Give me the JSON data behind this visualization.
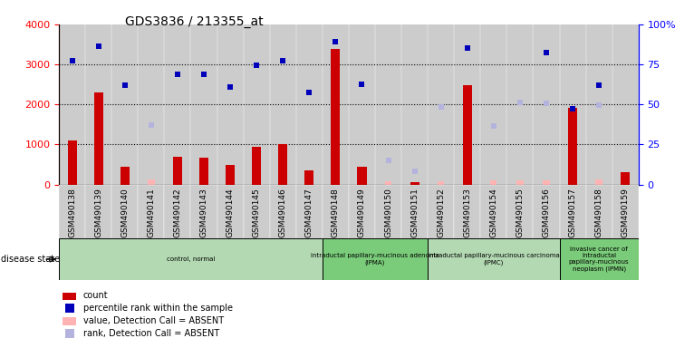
{
  "title": "GDS3836 / 213355_at",
  "samples": [
    "GSM490138",
    "GSM490139",
    "GSM490140",
    "GSM490141",
    "GSM490142",
    "GSM490143",
    "GSM490144",
    "GSM490145",
    "GSM490146",
    "GSM490147",
    "GSM490148",
    "GSM490149",
    "GSM490150",
    "GSM490151",
    "GSM490152",
    "GSM490153",
    "GSM490154",
    "GSM490155",
    "GSM490156",
    "GSM490157",
    "GSM490158",
    "GSM490159"
  ],
  "counts": [
    1100,
    2300,
    450,
    0,
    680,
    660,
    480,
    940,
    1000,
    350,
    3380,
    450,
    0,
    60,
    0,
    2480,
    0,
    0,
    0,
    1920,
    0,
    310
  ],
  "absent_value": [
    0,
    0,
    0,
    120,
    0,
    0,
    0,
    0,
    0,
    0,
    0,
    0,
    80,
    0,
    90,
    0,
    100,
    110,
    100,
    0,
    120,
    0
  ],
  "percentile_rank": [
    3100,
    3450,
    2490,
    0,
    2750,
    2750,
    2430,
    2980,
    3090,
    2310,
    3560,
    2510,
    0,
    0,
    0,
    3400,
    0,
    0,
    3300,
    1890,
    2470,
    0
  ],
  "absent_rank": [
    0,
    0,
    0,
    1480,
    0,
    0,
    0,
    0,
    0,
    0,
    0,
    0,
    600,
    330,
    1940,
    0,
    1450,
    2040,
    2030,
    0,
    1980,
    0
  ],
  "disease_groups": [
    {
      "label": "control, normal",
      "start": 0,
      "end": 10,
      "color": "#b2d9b2"
    },
    {
      "label": "intraductal papillary-mucinous adenoma\n(IPMA)",
      "start": 10,
      "end": 14,
      "color": "#7acc7a"
    },
    {
      "label": "intraductal papillary-mucinous carcinoma\n(IPMC)",
      "start": 14,
      "end": 19,
      "color": "#b2d9b2"
    },
    {
      "label": "invasive cancer of\nintraductal\npapillary-mucinous\nneoplasm (IPMN)",
      "start": 19,
      "end": 22,
      "color": "#7acc7a"
    }
  ],
  "ylim_left": [
    0,
    4000
  ],
  "ylim_right": [
    0,
    100
  ],
  "bar_color": "#cc0000",
  "absent_bar_color": "#ffb3b3",
  "dot_color": "#0000bb",
  "absent_dot_color": "#b3b3dd",
  "col_bg_even": "#cccccc",
  "col_bg_odd": "#dddddd"
}
